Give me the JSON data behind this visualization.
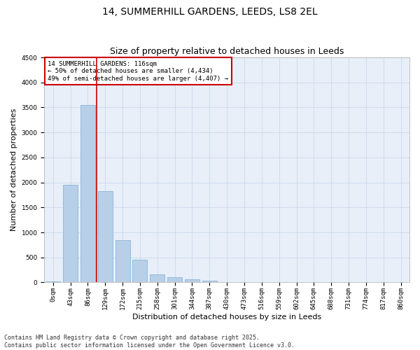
{
  "title_line1": "14, SUMMERHILL GARDENS, LEEDS, LS8 2EL",
  "title_line2": "Size of property relative to detached houses in Leeds",
  "xlabel": "Distribution of detached houses by size in Leeds",
  "ylabel": "Number of detached properties",
  "categories": [
    "0sqm",
    "43sqm",
    "86sqm",
    "129sqm",
    "172sqm",
    "215sqm",
    "258sqm",
    "301sqm",
    "344sqm",
    "387sqm",
    "430sqm",
    "473sqm",
    "516sqm",
    "559sqm",
    "602sqm",
    "645sqm",
    "688sqm",
    "731sqm",
    "774sqm",
    "817sqm",
    "860sqm"
  ],
  "bar_heights": [
    20,
    1950,
    3550,
    1820,
    850,
    450,
    165,
    105,
    60,
    30,
    5,
    3,
    2,
    1,
    1,
    0,
    0,
    0,
    0,
    0,
    0
  ],
  "bar_color": "#b8cfe8",
  "bar_edge_color": "#7aafd4",
  "vline_color": "#cc0000",
  "vline_x_index": 2.5,
  "ylim": [
    0,
    4500
  ],
  "yticks": [
    0,
    500,
    1000,
    1500,
    2000,
    2500,
    3000,
    3500,
    4000,
    4500
  ],
  "annotation_box_text": "14 SUMMERHILL GARDENS: 116sqm\n← 50% of detached houses are smaller (4,434)\n49% of semi-detached houses are larger (4,407) →",
  "bg_color": "#e8eff8",
  "grid_color": "#c5d3e8",
  "footer_text": "Contains HM Land Registry data © Crown copyright and database right 2025.\nContains public sector information licensed under the Open Government Licence v3.0.",
  "title_fontsize": 10,
  "subtitle_fontsize": 9,
  "axis_label_fontsize": 8,
  "tick_fontsize": 6.5,
  "annotation_fontsize": 6.5,
  "footer_fontsize": 6
}
